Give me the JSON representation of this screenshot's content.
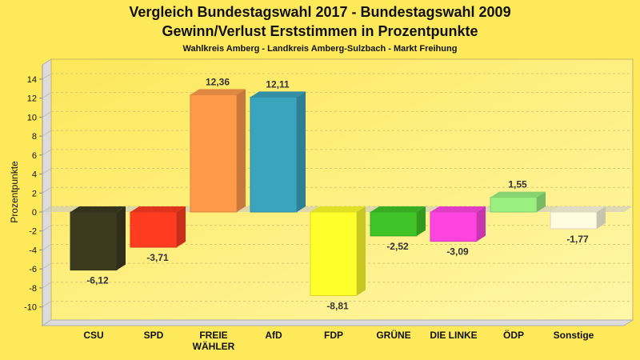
{
  "chart_data": {
    "type": "bar",
    "title": "Vergleich Bundestagswahl 2017 - Bundestagswahl 2009",
    "subtitle": "Gewinn/Verlust Erststimmen in Prozentpunkte",
    "subsubtitle": "Wahlkreis Amberg - Landkreis Amberg-Sulzbach - Markt Freihung",
    "xlabel": "",
    "ylabel": "Prozentpunkte",
    "ylim": [
      -12,
      15
    ],
    "yticks": [
      14,
      12,
      10,
      8,
      6,
      4,
      2,
      0,
      -2,
      -4,
      -6,
      -8,
      -10
    ],
    "grid": true,
    "categories": [
      "CSU",
      "SPD",
      "FREIE WÄHLER",
      "AfD",
      "FDP",
      "GRÜNE",
      "DIE LINKE",
      "ÖDP",
      "Sonstige"
    ],
    "category_lines": [
      [
        "CSU"
      ],
      [
        "SPD"
      ],
      [
        "FREIE",
        "WÄHLER"
      ],
      [
        "AfD"
      ],
      [
        "FDP"
      ],
      [
        "GRÜNE"
      ],
      [
        "DIE LINKE"
      ],
      [
        "ÖDP"
      ],
      [
        "Sonstige"
      ]
    ],
    "values": [
      -6.12,
      -3.71,
      12.36,
      12.11,
      -8.81,
      -2.52,
      -3.09,
      1.55,
      -1.77
    ],
    "labels": [
      "-6,12",
      "-3,71",
      "12,36",
      "12,11",
      "-8,81",
      "-2,52",
      "-3,09",
      "1,55",
      "-1,77"
    ],
    "colors": [
      "#3d3a20",
      "#ff3c20",
      "#ff9a4a",
      "#3aa3bd",
      "#ffff2a",
      "#40c528",
      "#ff44e0",
      "#99f080",
      "#fffbe0"
    ]
  }
}
